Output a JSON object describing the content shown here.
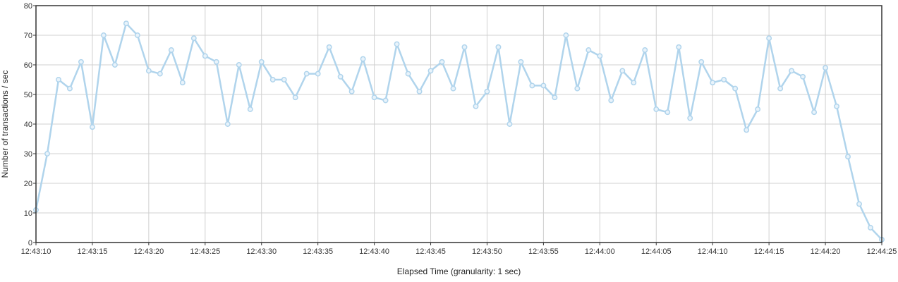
{
  "chart_data": {
    "type": "line",
    "title": "",
    "xlabel": "Elapsed Time (granularity: 1 sec)",
    "ylabel": "Number of transactions / sec",
    "ylim": [
      0,
      80
    ],
    "yticks": [
      "0",
      "10",
      "20",
      "30",
      "40",
      "50",
      "60",
      "70",
      "80"
    ],
    "xticks": [
      "12:43:10",
      "12:43:15",
      "12:43:20",
      "12:43:25",
      "12:43:30",
      "12:43:35",
      "12:43:40",
      "12:43:45",
      "12:43:50",
      "12:43:55",
      "12:44:00",
      "12:44:05",
      "12:44:10",
      "12:44:15",
      "12:44:20",
      "12:44:25"
    ],
    "x_range": [
      "12:43:10",
      "12:44:25"
    ],
    "x_interval_seconds": 1,
    "grid": true,
    "legend": "none",
    "colors": {
      "line": "#b0d4ec",
      "marker_fill": "#e8f3fb",
      "grid": "#d0d0d0",
      "frame": "#333333"
    },
    "series": [
      {
        "values": [
          11,
          30,
          55,
          52,
          61,
          39,
          70,
          60,
          74,
          70,
          58,
          57,
          65,
          54,
          69,
          63,
          61,
          40,
          60,
          45,
          61,
          55,
          55,
          49,
          57,
          57,
          66,
          56,
          51,
          62,
          49,
          48,
          67,
          57,
          51,
          58,
          61,
          52,
          66,
          46,
          51,
          66,
          40,
          61,
          53,
          53,
          49,
          70,
          52,
          65,
          63,
          48,
          58,
          54,
          65,
          45,
          44,
          66,
          42,
          61,
          54,
          55,
          52,
          38,
          45,
          69,
          52,
          58,
          56,
          44,
          59,
          46,
          29,
          13,
          5,
          1
        ]
      }
    ]
  }
}
